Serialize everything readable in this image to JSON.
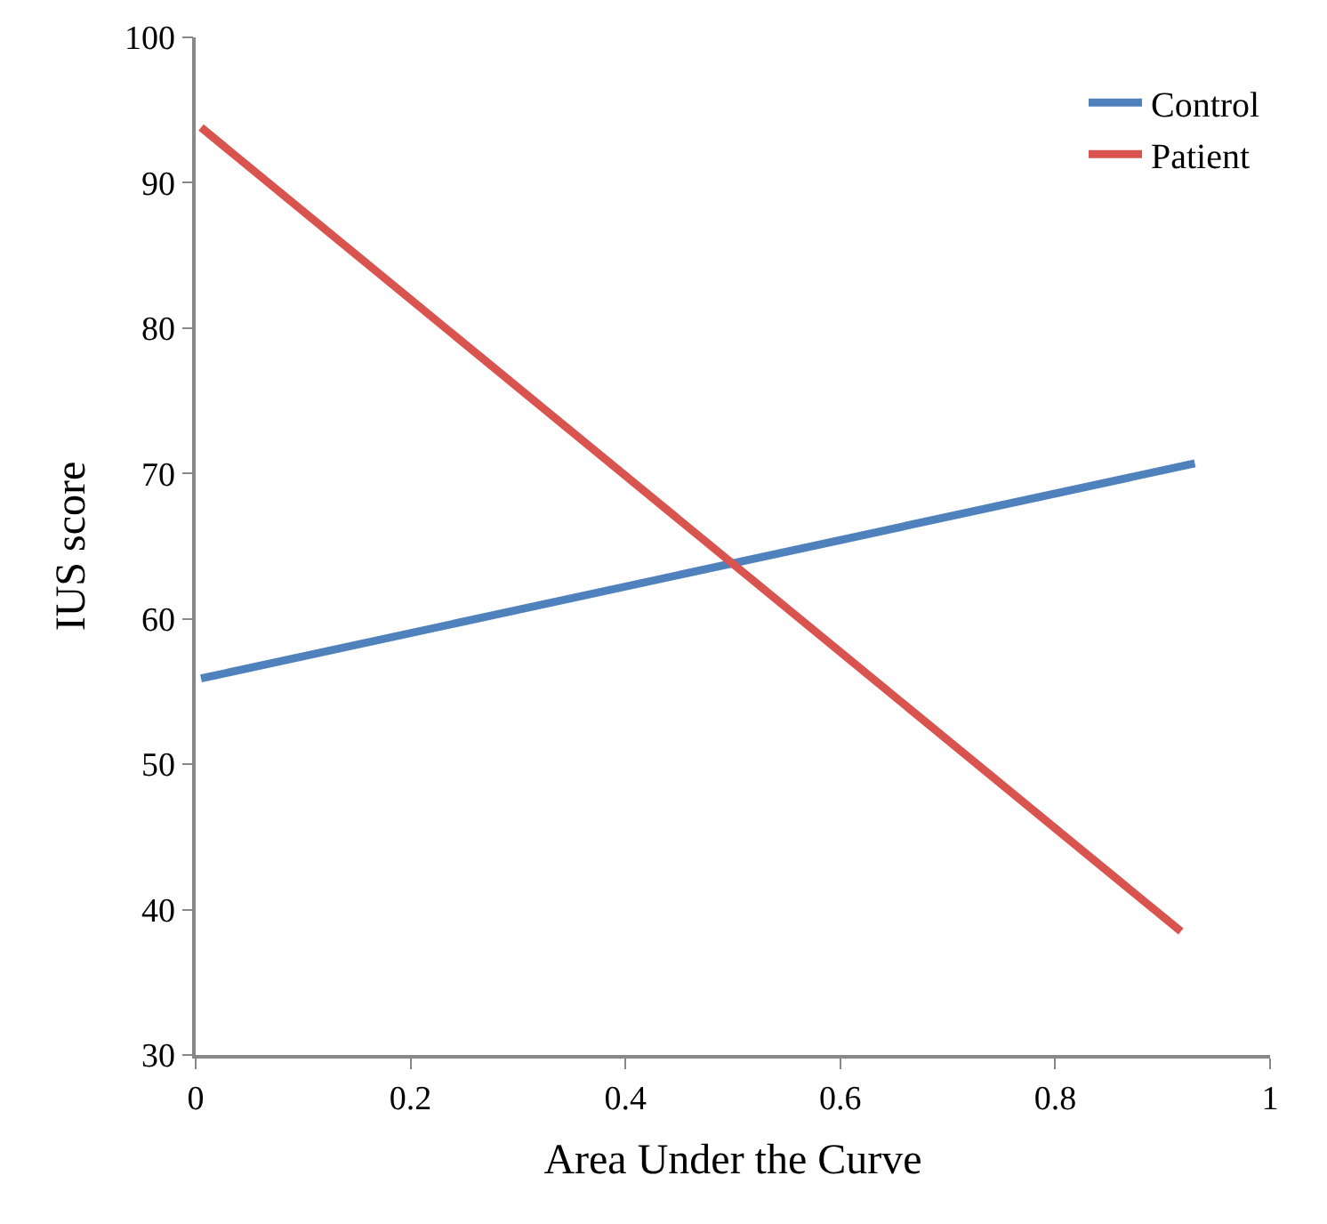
{
  "chart_data": {
    "type": "line",
    "xlabel": "Area Under the Curve",
    "ylabel": "IUS score",
    "xlim": [
      0,
      1
    ],
    "xticks": [
      0,
      0.2,
      0.4,
      0.6,
      0.8,
      1
    ],
    "ylim": [
      30,
      100
    ],
    "yticks": [
      30,
      40,
      50,
      60,
      70,
      80,
      90,
      100
    ],
    "legend": "top right",
    "marker": "none",
    "line_style": "solid",
    "series": [
      {
        "name": "Control",
        "color": "#4f81bd",
        "x": [
          0.005,
          0.93
        ],
        "values": [
          55.9,
          70.7
        ]
      },
      {
        "name": "Patient",
        "color": "#d9534f",
        "x": [
          0.005,
          0.917
        ],
        "values": [
          93.8,
          38.5
        ]
      }
    ]
  }
}
